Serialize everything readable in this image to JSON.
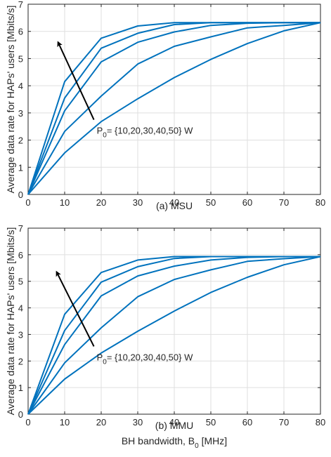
{
  "chart_data": [
    {
      "type": "line",
      "caption": "(a) MSU",
      "ylabel": "Average data rate for HAPs' users [Mbits/s]",
      "xlabel": "",
      "xlim": [
        0,
        80
      ],
      "ylim": [
        0,
        7
      ],
      "xticks": [
        0,
        10,
        20,
        30,
        40,
        50,
        60,
        70,
        80
      ],
      "yticks": [
        0,
        1,
        2,
        3,
        4,
        5,
        6,
        7
      ],
      "grid": true,
      "line_color": "#0072BD",
      "annotation": {
        "prefix": "P",
        "sub": "0",
        "suffix": "= {10,20,30,40,50} W"
      },
      "arrow": {
        "from": [
          18,
          2.75
        ],
        "to": [
          8.2,
          5.6
        ]
      },
      "x": [
        0,
        10,
        20,
        30,
        40,
        50,
        60,
        70,
        80
      ],
      "series": [
        {
          "values": [
            0,
            4.15,
            5.75,
            6.2,
            6.32,
            6.32,
            6.32,
            6.32,
            6.32
          ]
        },
        {
          "values": [
            0,
            3.55,
            5.38,
            5.93,
            6.25,
            6.32,
            6.32,
            6.32,
            6.32
          ]
        },
        {
          "values": [
            0,
            3.08,
            4.88,
            5.6,
            5.98,
            6.22,
            6.3,
            6.32,
            6.32
          ]
        },
        {
          "values": [
            0,
            2.32,
            3.62,
            4.8,
            5.45,
            5.8,
            6.13,
            6.22,
            6.32
          ]
        },
        {
          "values": [
            0,
            1.53,
            2.68,
            3.52,
            4.3,
            4.97,
            5.55,
            6.02,
            6.32
          ]
        }
      ]
    },
    {
      "type": "line",
      "caption": "(b) MMU",
      "ylabel": "Average data rate for HAPs' users [Mbits/s]",
      "xlabel": "BH bandwidth, B",
      "xlabel_sub": "0",
      "xlabel_suffix": " [MHz]",
      "xlim": [
        0,
        80
      ],
      "ylim": [
        0,
        7
      ],
      "xticks": [
        0,
        10,
        20,
        30,
        40,
        50,
        60,
        70,
        80
      ],
      "yticks": [
        0,
        1,
        2,
        3,
        4,
        5,
        6,
        7
      ],
      "grid": true,
      "line_color": "#0072BD",
      "annotation": {
        "prefix": "P",
        "sub": "0",
        "suffix": "= {10,20,30,40,50} W"
      },
      "arrow": {
        "from": [
          18,
          2.55
        ],
        "to": [
          7.8,
          5.35
        ]
      },
      "x": [
        0,
        10,
        20,
        30,
        40,
        50,
        60,
        70,
        80
      ],
      "series": [
        {
          "values": [
            0,
            3.76,
            5.33,
            5.8,
            5.93,
            5.93,
            5.93,
            5.93,
            5.93
          ]
        },
        {
          "values": [
            0,
            3.15,
            4.97,
            5.55,
            5.86,
            5.93,
            5.93,
            5.93,
            5.93
          ]
        },
        {
          "values": [
            0,
            2.62,
            4.45,
            5.2,
            5.57,
            5.8,
            5.9,
            5.93,
            5.93
          ]
        },
        {
          "values": [
            0,
            1.93,
            3.25,
            4.42,
            5.07,
            5.43,
            5.75,
            5.85,
            5.93
          ]
        },
        {
          "values": [
            0,
            1.32,
            2.3,
            3.12,
            3.88,
            4.58,
            5.15,
            5.62,
            5.93
          ]
        }
      ]
    }
  ]
}
